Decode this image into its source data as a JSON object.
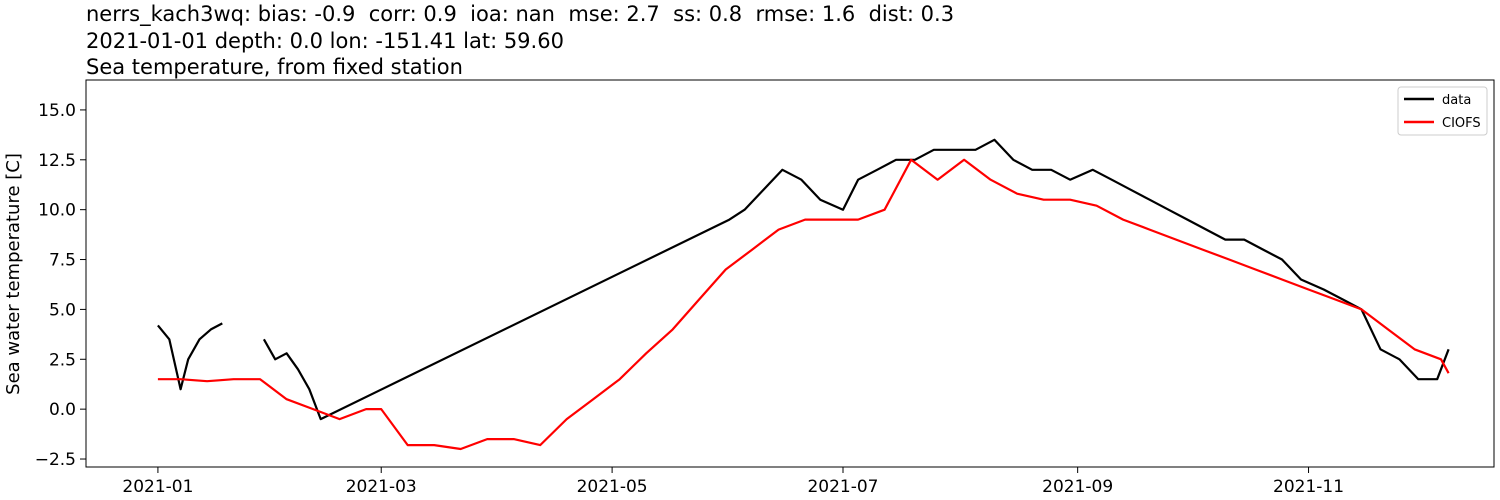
{
  "chart_data": {
    "type": "line",
    "title_lines": [
      "nerrs_kach3wq: bias: -0.9  corr: 0.9  ioa: nan  mse: 2.7  ss: 0.8  rmse: 1.6  dist: 0.3",
      "2021-01-01 depth: 0.0 lon: -151.41 lat: 59.60",
      "Sea temperature, from fixed station"
    ],
    "xlabel": "",
    "ylabel": "Sea water temperature [C]",
    "x_axis": {
      "type": "date",
      "range": [
        "2020-12-13",
        "2021-12-20"
      ],
      "ticks": [
        "2021-01",
        "2021-03",
        "2021-05",
        "2021-07",
        "2021-09",
        "2021-11"
      ]
    },
    "ylim": [
      -2.9,
      16.5
    ],
    "y_ticks": [
      "−2.5",
      "0.0",
      "2.5",
      "5.0",
      "7.5",
      "10.0",
      "12.5",
      "15.0"
    ],
    "legend": {
      "placement": "top-right"
    },
    "grid": false,
    "series": [
      {
        "name": "data",
        "color": "#000000",
        "x": [
          "2021-01-01",
          "2021-01-04",
          "2021-01-07",
          "2021-01-09",
          "2021-01-12",
          "2021-01-15",
          "2021-01-18",
          "2021-01-20",
          "2021-01-23",
          "2021-01-26",
          "2021-01-29",
          "2021-02-01",
          "2021-02-04",
          "2021-02-07",
          "2021-02-10",
          "2021-02-13",
          "2021-06-01",
          "2021-06-05",
          "2021-06-10",
          "2021-06-15",
          "2021-06-20",
          "2021-06-25",
          "2021-07-01",
          "2021-07-05",
          "2021-07-10",
          "2021-07-15",
          "2021-07-20",
          "2021-07-25",
          "2021-07-30",
          "2021-08-05",
          "2021-08-10",
          "2021-08-15",
          "2021-08-20",
          "2021-08-25",
          "2021-08-30",
          "2021-09-05",
          "2021-09-10",
          "2021-09-15",
          "2021-09-20",
          "2021-09-25",
          "2021-09-30",
          "2021-10-05",
          "2021-10-10",
          "2021-10-15",
          "2021-10-20",
          "2021-10-25",
          "2021-10-30",
          "2021-11-05",
          "2021-11-10",
          "2021-11-15",
          "2021-11-20",
          "2021-11-25",
          "2021-11-30",
          "2021-12-05",
          "2021-12-08"
        ],
        "values": [
          4.2,
          3.5,
          1.0,
          2.5,
          3.5,
          4.0,
          4.3,
          null,
          null,
          null,
          3.5,
          2.5,
          2.8,
          2.0,
          1.0,
          -0.5,
          9.5,
          10.0,
          11.0,
          12.0,
          11.5,
          10.5,
          10.0,
          11.5,
          12.0,
          12.5,
          12.5,
          13.0,
          13.0,
          13.0,
          13.5,
          12.5,
          12.0,
          12.0,
          11.5,
          12.0,
          11.5,
          11.0,
          10.5,
          10.0,
          9.5,
          9.0,
          8.5,
          8.5,
          8.0,
          7.5,
          6.5,
          6.0,
          5.5,
          5.0,
          3.0,
          2.5,
          1.5,
          1.5,
          3.0
        ]
      },
      {
        "name": "CIOFS",
        "color": "#ff0000",
        "x": [
          "2021-01-01",
          "2021-01-07",
          "2021-01-14",
          "2021-01-21",
          "2021-01-28",
          "2021-02-04",
          "2021-02-11",
          "2021-02-18",
          "2021-02-25",
          "2021-03-01",
          "2021-03-08",
          "2021-03-15",
          "2021-03-22",
          "2021-03-29",
          "2021-04-05",
          "2021-04-12",
          "2021-04-19",
          "2021-04-26",
          "2021-05-03",
          "2021-05-10",
          "2021-05-17",
          "2021-05-24",
          "2021-05-31",
          "2021-06-07",
          "2021-06-14",
          "2021-06-21",
          "2021-06-28",
          "2021-07-05",
          "2021-07-12",
          "2021-07-19",
          "2021-07-26",
          "2021-08-02",
          "2021-08-09",
          "2021-08-16",
          "2021-08-23",
          "2021-08-30",
          "2021-09-06",
          "2021-09-13",
          "2021-09-20",
          "2021-09-27",
          "2021-10-04",
          "2021-10-11",
          "2021-10-18",
          "2021-10-25",
          "2021-11-01",
          "2021-11-08",
          "2021-11-15",
          "2021-11-22",
          "2021-11-29",
          "2021-12-06",
          "2021-12-08"
        ],
        "values": [
          1.5,
          1.5,
          1.4,
          1.5,
          1.5,
          0.5,
          0.0,
          -0.5,
          0.0,
          0.0,
          -1.8,
          -1.8,
          -2.0,
          -1.5,
          -1.5,
          -1.8,
          -0.5,
          0.5,
          1.5,
          2.8,
          4.0,
          5.5,
          7.0,
          8.0,
          9.0,
          9.5,
          9.5,
          9.5,
          10.0,
          12.5,
          11.5,
          12.5,
          11.5,
          10.8,
          10.5,
          10.5,
          10.2,
          9.5,
          9.0,
          8.5,
          8.0,
          7.5,
          7.0,
          6.5,
          6.0,
          5.5,
          5.0,
          4.0,
          3.0,
          2.5,
          1.8
        ]
      }
    ]
  }
}
